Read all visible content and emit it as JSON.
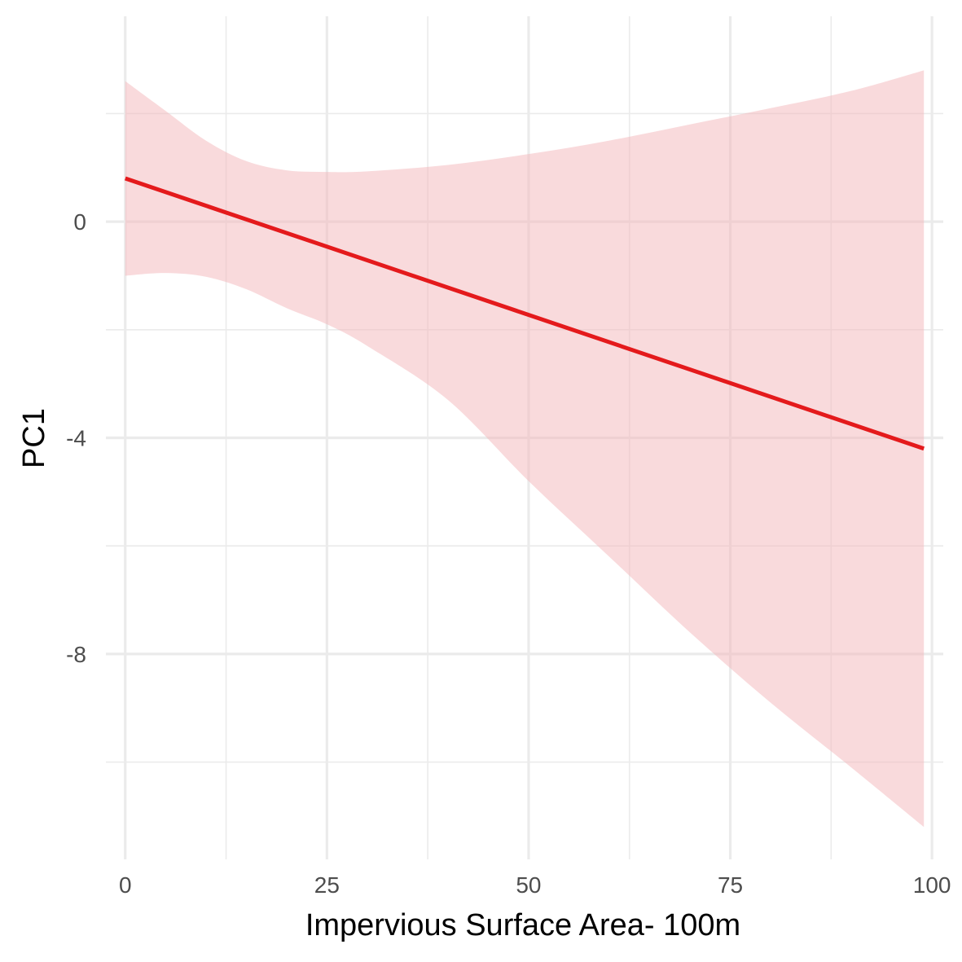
{
  "chart_data": {
    "type": "line",
    "xlabel": "Impervious Surface Area- 100m",
    "ylabel": "PC1",
    "xlim": [
      -2.4,
      101.4
    ],
    "ylim": [
      -11.8,
      3.8
    ],
    "x_ticks": [
      0,
      25,
      50,
      75,
      100
    ],
    "x_tick_labels": [
      "0",
      "25",
      "50",
      "75",
      "100"
    ],
    "x_minor_ticks": [
      12.5,
      37.5,
      62.5,
      87.5
    ],
    "y_ticks": [
      0,
      -4,
      -8
    ],
    "y_tick_labels": [
      "0",
      "-4",
      "-8"
    ],
    "y_minor_ticks": [
      2,
      -2,
      -6,
      -10
    ],
    "grid": true,
    "series": [
      {
        "x": [
          0,
          99
        ],
        "y": [
          0.8,
          -4.2
        ]
      }
    ],
    "confidence_band": {
      "x": [
        0,
        5,
        10,
        15,
        20,
        25,
        30,
        40,
        50,
        60,
        70,
        80,
        90,
        99
      ],
      "upper": [
        2.6,
        2.05,
        1.5,
        1.12,
        0.95,
        0.92,
        0.93,
        1.05,
        1.25,
        1.5,
        1.8,
        2.1,
        2.42,
        2.8
      ],
      "lower": [
        -1.0,
        -0.95,
        -1.02,
        -1.25,
        -1.6,
        -1.9,
        -2.3,
        -3.3,
        -4.8,
        -6.2,
        -7.6,
        -8.9,
        -10.1,
        -11.2
      ]
    },
    "colors": {
      "line": "#e41a1c",
      "band": "#f4b6ba",
      "grid": "#ebebeb"
    }
  }
}
